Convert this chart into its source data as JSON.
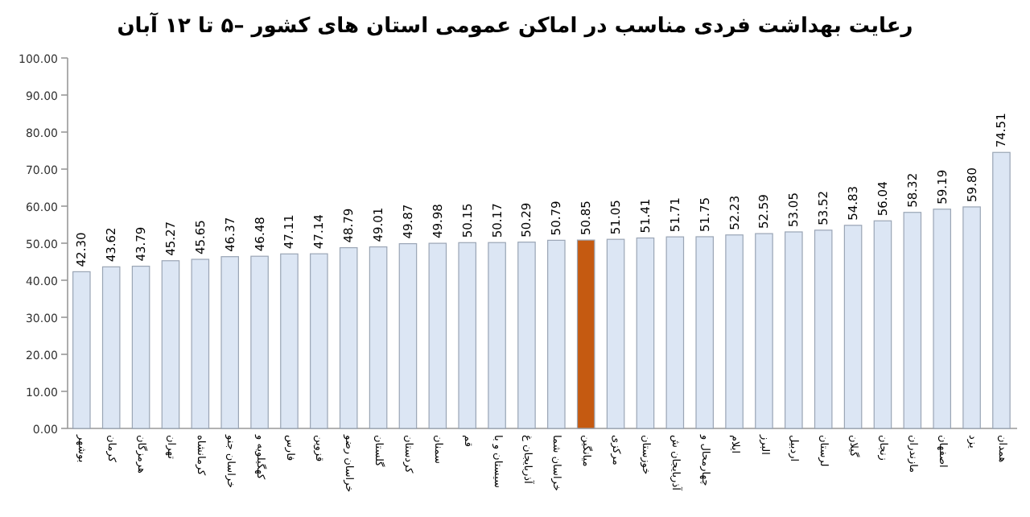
{
  "chart_data": {
    "type": "bar",
    "title": "رعایت بهداشت فردی مناسب در اماکن عمومی استان های کشور –۵ تا ۱۲ آبان",
    "categories": [
      "بوشهر",
      "کرمان",
      "هرمزگان",
      "تهران",
      "کرمانشاه",
      "خراسان جنو",
      "کهگیلویه و",
      "فارس",
      "قزوین",
      "خراسان رضو",
      "گلستان",
      "کردستان",
      "سمنان",
      "قم",
      "سیستان و با",
      "آذربایجان غ",
      "خراسان شما",
      "میانگین",
      "مرکزی",
      "خوزستان",
      "آذربایجان ش",
      "چهارمحال و",
      "ایلام",
      "البرز",
      "اردبیل",
      "لرستان",
      "گیلان",
      "زنجان",
      "مازندران",
      "اصفهان",
      "یزد",
      "همدان"
    ],
    "values": [
      42.3,
      43.62,
      43.79,
      45.27,
      45.65,
      46.37,
      46.48,
      47.11,
      47.14,
      48.79,
      49.01,
      49.87,
      49.98,
      50.15,
      50.17,
      50.29,
      50.79,
      50.85,
      51.05,
      51.41,
      51.71,
      51.75,
      52.23,
      52.59,
      53.05,
      53.52,
      54.83,
      56.04,
      58.32,
      59.19,
      59.8,
      74.51
    ],
    "value_labels": [
      "42.30",
      "43.62",
      "43.79",
      "45.27",
      "45.65",
      "46.37",
      "46.48",
      "47.11",
      "47.14",
      "48.79",
      "49.01",
      "49.87",
      "49.98",
      "50.15",
      "50.17",
      "50.29",
      "50.79",
      "50.85",
      "51.05",
      "51.41",
      "51.71",
      "51.75",
      "52.23",
      "52.59",
      "53.05",
      "53.52",
      "54.83",
      "56.04",
      "58.32",
      "59.19",
      "59.80",
      "74.51"
    ],
    "colors": [
      "#dce6f4",
      "#dce6f4",
      "#dce6f4",
      "#dce6f4",
      "#dce6f4",
      "#dce6f4",
      "#dce6f4",
      "#dce6f4",
      "#dce6f4",
      "#dce6f4",
      "#dce6f4",
      "#dce6f4",
      "#dce6f4",
      "#dce6f4",
      "#dce6f4",
      "#dce6f4",
      "#dce6f4",
      "#c55a11",
      "#dce6f4",
      "#dce6f4",
      "#dce6f4",
      "#dce6f4",
      "#dce6f4",
      "#dce6f4",
      "#dce6f4",
      "#dce6f4",
      "#dce6f4",
      "#dce6f4",
      "#dce6f4",
      "#dce6f4",
      "#dce6f4",
      "#dce6f4"
    ],
    "ylim": [
      0,
      100
    ],
    "yticks": [
      {
        "value": 0,
        "label": "0.00"
      },
      {
        "value": 10,
        "label": "10.00"
      },
      {
        "value": 20,
        "label": "20.00"
      },
      {
        "value": 30,
        "label": "30.00"
      },
      {
        "value": 40,
        "label": "40.00"
      },
      {
        "value": 50,
        "label": "50.00"
      },
      {
        "value": 60,
        "label": "60.00"
      },
      {
        "value": 70,
        "label": "70.00"
      },
      {
        "value": 80,
        "label": "80.00"
      },
      {
        "value": 90,
        "label": "90.00"
      },
      {
        "value": 100,
        "label": "100.00"
      }
    ]
  }
}
